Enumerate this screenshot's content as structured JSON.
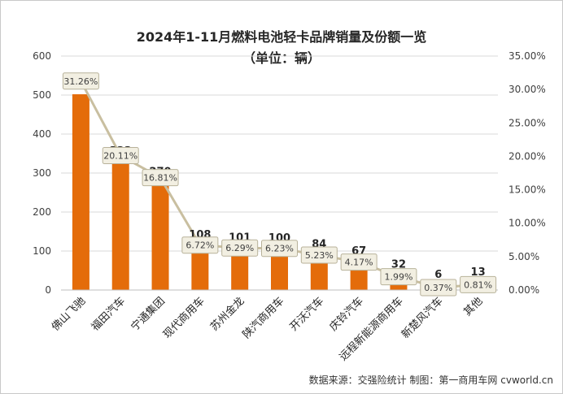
{
  "chart_data": {
    "type": "bar",
    "title": "2024年1-11月燃料电池轻卡品牌销量及份额一览",
    "subtitle": "（单位：辆）",
    "categories": [
      "佛山飞驰",
      "福田汽车",
      "宁通集团",
      "现代商用车",
      "苏州金龙",
      "陕汽商用车",
      "开沃汽车",
      "庆铃汽车",
      "远程新能源商用车",
      "新楚风汽车",
      "其他"
    ],
    "series": [
      {
        "type": "bar",
        "axis": "left",
        "values": [
          502,
          323,
          270,
          108,
          101,
          100,
          84,
          67,
          32,
          6,
          13
        ],
        "color": "#E46C0A"
      },
      {
        "type": "line",
        "axis": "right",
        "values": [
          31.26,
          20.11,
          16.81,
          6.72,
          6.29,
          6.23,
          5.23,
          4.17,
          1.99,
          0.37,
          0.81
        ],
        "value_labels": [
          "31.26%",
          "20.11%",
          "16.81%",
          "6.72%",
          "6.29%",
          "6.23%",
          "5.23%",
          "4.17%",
          "1.99%",
          "0.37%",
          "0.81%"
        ],
        "color": "#C9BFA0"
      }
    ],
    "y_left": {
      "ylim": [
        0,
        600
      ],
      "ticks": [
        0,
        100,
        200,
        300,
        400,
        500,
        600
      ]
    },
    "y_right": {
      "ylim": [
        0,
        35
      ],
      "ticks": [
        "0.00%",
        "5.00%",
        "10.00%",
        "15.00%",
        "20.00%",
        "25.00%",
        "30.00%",
        "35.00%"
      ]
    },
    "grid": true,
    "legend": "none"
  },
  "source_note": "数据来源：交强险统计  制图：第一商用车网 cvworld.cn"
}
